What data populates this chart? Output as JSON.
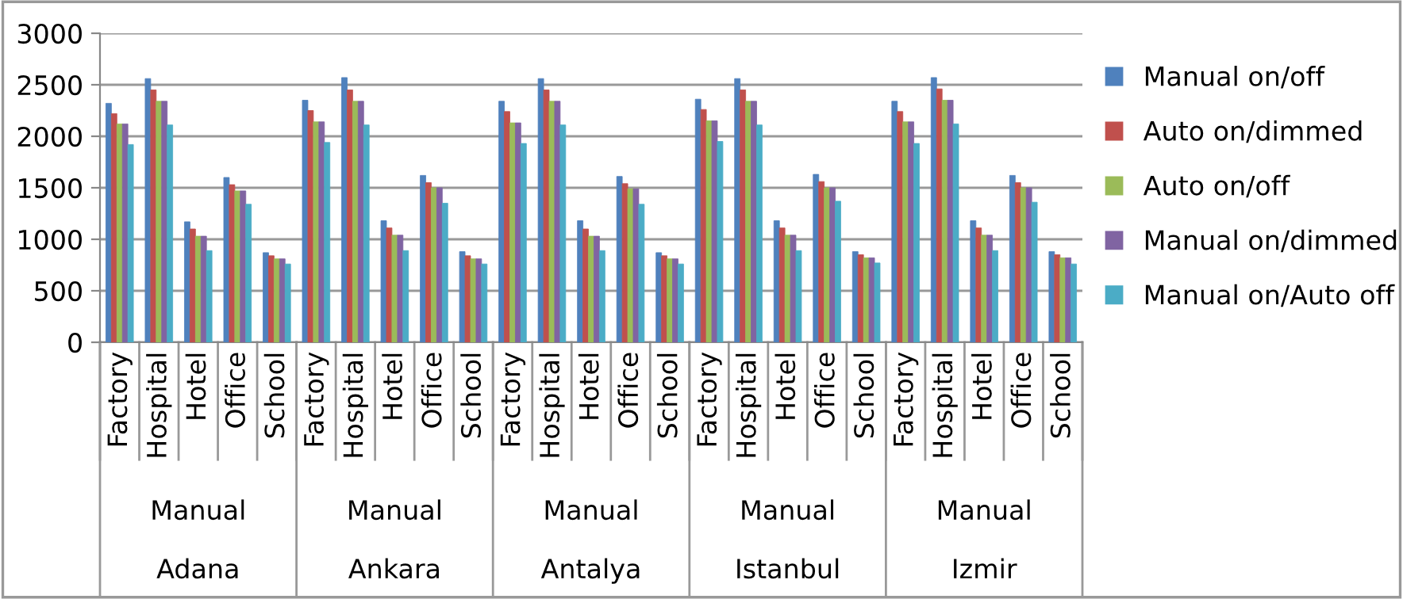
{
  "chart_data": {
    "type": "bar",
    "categories": [
      "Factory",
      "Hospital",
      "Hotel",
      "Office",
      "School",
      "Factory",
      "Hospital",
      "Hotel",
      "Office",
      "School",
      "Factory",
      "Hospital",
      "Hotel",
      "Office",
      "School",
      "Factory",
      "Hospital",
      "Hotel",
      "Office",
      "School",
      "Factory",
      "Hospital",
      "Hotel",
      "Office",
      "School"
    ],
    "annotations": [
      "Manual",
      "Adana",
      "Manual",
      "Ankara",
      "Manual",
      "Antalya",
      "Manual",
      "Istanbul",
      "Manual",
      "Izmir"
    ],
    "series": [
      {
        "name": "Manual on/off",
        "color": "#4f81bd",
        "values": [
          2320,
          2560,
          1170,
          1600,
          870,
          2350,
          2570,
          1180,
          1620,
          880,
          2340,
          2560,
          1180,
          1610,
          870,
          2360,
          2560,
          1180,
          1630,
          880,
          2340,
          2570,
          1180,
          1620,
          880
        ]
      },
      {
        "name": "Auto on/dimmed",
        "color": "#c0504d",
        "values": [
          2220,
          2450,
          1100,
          1530,
          840,
          2250,
          2450,
          1110,
          1550,
          840,
          2240,
          2450,
          1100,
          1540,
          840,
          2260,
          2450,
          1110,
          1560,
          850,
          2240,
          2460,
          1110,
          1550,
          850
        ]
      },
      {
        "name": "Auto on/off",
        "color": "#9bbb59",
        "values": [
          2120,
          2340,
          1030,
          1470,
          810,
          2140,
          2340,
          1040,
          1500,
          810,
          2130,
          2340,
          1030,
          1490,
          810,
          2150,
          2340,
          1040,
          1500,
          820,
          2140,
          2350,
          1040,
          1500,
          820
        ]
      },
      {
        "name": "Manual on/dimmed",
        "color": "#8064a2",
        "values": [
          2120,
          2340,
          1030,
          1470,
          810,
          2140,
          2340,
          1040,
          1500,
          810,
          2130,
          2340,
          1030,
          1490,
          810,
          2150,
          2340,
          1040,
          1500,
          820,
          2140,
          2350,
          1040,
          1500,
          820
        ]
      },
      {
        "name": "Manual on/Auto off",
        "color": "#4bacc6",
        "values": [
          1920,
          2110,
          890,
          1340,
          760,
          1940,
          2110,
          890,
          1350,
          760,
          1930,
          2110,
          890,
          1340,
          760,
          1950,
          2110,
          890,
          1370,
          770,
          1930,
          2120,
          890,
          1360,
          760
        ]
      }
    ],
    "ylim": [
      0,
      3000
    ],
    "yticks": [
      0,
      500,
      1000,
      1500,
      2000,
      2500,
      3000
    ],
    "grid": "y",
    "legend": "right"
  }
}
